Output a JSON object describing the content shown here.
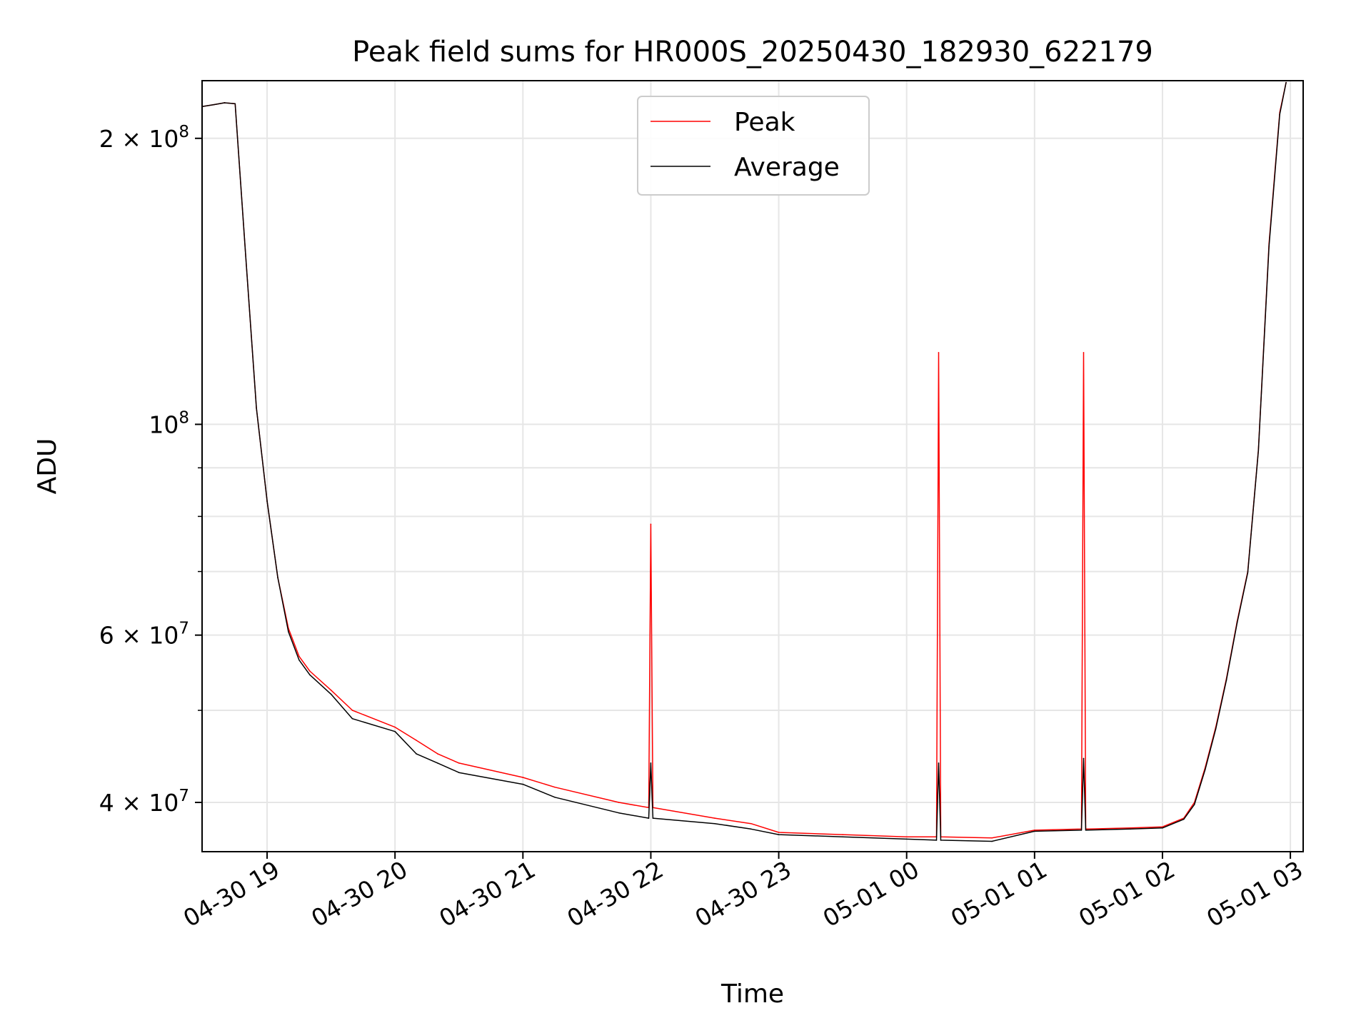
{
  "chart_data": {
    "type": "line",
    "title": "Peak field sums for HR000S_20250430_182930_622179",
    "xlabel": "Time",
    "ylabel": "ADU",
    "y_scale": "log",
    "grid": true,
    "legend_placement": "upper center",
    "xlim": [
      "2025-04-30 18:29:30",
      "2025-05-01 03:06:00"
    ],
    "ylim": [
      35500000,
      230000000
    ],
    "x_ticks": [
      {
        "value": "2025-04-30 19:00",
        "label": "04-30 19"
      },
      {
        "value": "2025-04-30 20:00",
        "label": "04-30 20"
      },
      {
        "value": "2025-04-30 21:00",
        "label": "04-30 21"
      },
      {
        "value": "2025-04-30 22:00",
        "label": "04-30 22"
      },
      {
        "value": "2025-04-30 23:00",
        "label": "04-30 23"
      },
      {
        "value": "2025-05-01 00:00",
        "label": "05-01 00"
      },
      {
        "value": "2025-05-01 01:00",
        "label": "05-01 01"
      },
      {
        "value": "2025-05-01 02:00",
        "label": "05-01 02"
      },
      {
        "value": "2025-05-01 03:00",
        "label": "05-01 03"
      }
    ],
    "y_ticks_major": [
      {
        "value": 40000000,
        "base": "4 × 10",
        "exp": "7"
      },
      {
        "value": 60000000,
        "base": "6 × 10",
        "exp": "7"
      },
      {
        "value": 100000000,
        "base": "10",
        "exp": "8"
      },
      {
        "value": 200000000,
        "base": "2 × 10",
        "exp": "8"
      }
    ],
    "y_ticks_minor": [
      50000000,
      70000000,
      80000000,
      90000000
    ],
    "series": [
      {
        "name": "Peak",
        "color": "#ff0000",
        "x": [
          "2025-04-30 18:29:30",
          "2025-04-30 18:35",
          "2025-04-30 18:40",
          "2025-04-30 18:45",
          "2025-04-30 18:50",
          "2025-04-30 18:55",
          "2025-04-30 19:00",
          "2025-04-30 19:05",
          "2025-04-30 19:10",
          "2025-04-30 19:15",
          "2025-04-30 19:20",
          "2025-04-30 19:30",
          "2025-04-30 19:40",
          "2025-04-30 20:00",
          "2025-04-30 20:10",
          "2025-04-30 20:20",
          "2025-04-30 20:30",
          "2025-04-30 21:00",
          "2025-04-30 21:15",
          "2025-04-30 21:45",
          "2025-04-30 21:59",
          "2025-04-30 22:00",
          "2025-04-30 22:01",
          "2025-04-30 22:30",
          "2025-04-30 22:47",
          "2025-04-30 23:00",
          "2025-04-30 23:30",
          "2025-05-01 00:00",
          "2025-05-01 00:14",
          "2025-05-01 00:15",
          "2025-05-01 00:16",
          "2025-05-01 00:40",
          "2025-05-01 01:00",
          "2025-05-01 01:22",
          "2025-05-01 01:23",
          "2025-05-01 01:24",
          "2025-05-01 01:45",
          "2025-05-01 02:00",
          "2025-05-01 02:10",
          "2025-05-01 02:15",
          "2025-05-01 02:20",
          "2025-05-01 02:25",
          "2025-05-01 02:30",
          "2025-05-01 02:35",
          "2025-05-01 02:40",
          "2025-05-01 02:45",
          "2025-05-01 02:50",
          "2025-05-01 02:55",
          "2025-05-01 02:58"
        ],
        "y": [
          216000000,
          217000000,
          218000000,
          217500000,
          150000000,
          104000000,
          83000000,
          69000000,
          61000000,
          57000000,
          55000000,
          52500000,
          50000000,
          48000000,
          46500000,
          45000000,
          44000000,
          42500000,
          41500000,
          40000000,
          39500000,
          78500000,
          39500000,
          38500000,
          38000000,
          37200000,
          37000000,
          36800000,
          36800000,
          119000000,
          36800000,
          36700000,
          37400000,
          37500000,
          119000000,
          37500000,
          37600000,
          37700000,
          38500000,
          40000000,
          43500000,
          48000000,
          54000000,
          62000000,
          70000000,
          94000000,
          155000000,
          213000000,
          229000000
        ]
      },
      {
        "name": "Average",
        "color": "#000000",
        "x": [
          "2025-04-30 18:29:30",
          "2025-04-30 18:35",
          "2025-04-30 18:40",
          "2025-04-30 18:45",
          "2025-04-30 18:50",
          "2025-04-30 18:55",
          "2025-04-30 19:00",
          "2025-04-30 19:05",
          "2025-04-30 19:10",
          "2025-04-30 19:15",
          "2025-04-30 19:20",
          "2025-04-30 19:30",
          "2025-04-30 19:40",
          "2025-04-30 20:00",
          "2025-04-30 20:10",
          "2025-04-30 20:20",
          "2025-04-30 20:30",
          "2025-04-30 21:00",
          "2025-04-30 21:15",
          "2025-04-30 21:45",
          "2025-04-30 21:59",
          "2025-04-30 22:00",
          "2025-04-30 22:01",
          "2025-04-30 22:30",
          "2025-04-30 22:47",
          "2025-04-30 23:00",
          "2025-04-30 23:30",
          "2025-05-01 00:00",
          "2025-05-01 00:14",
          "2025-05-01 00:15",
          "2025-05-01 00:16",
          "2025-05-01 00:40",
          "2025-05-01 01:00",
          "2025-05-01 01:22",
          "2025-05-01 01:23",
          "2025-05-01 01:24",
          "2025-05-01 01:45",
          "2025-05-01 02:00",
          "2025-05-01 02:10",
          "2025-05-01 02:15",
          "2025-05-01 02:20",
          "2025-05-01 02:25",
          "2025-05-01 02:30",
          "2025-05-01 02:35",
          "2025-05-01 02:40",
          "2025-05-01 02:45",
          "2025-05-01 02:50",
          "2025-05-01 02:55",
          "2025-05-01 02:58"
        ],
        "y": [
          216000000,
          217000000,
          218000000,
          217500000,
          150000000,
          104000000,
          83000000,
          69000000,
          60500000,
          56500000,
          54500000,
          52000000,
          49000000,
          47500000,
          45000000,
          44000000,
          43000000,
          41800000,
          40500000,
          39000000,
          38500000,
          44000000,
          38500000,
          38000000,
          37500000,
          37000000,
          36800000,
          36600000,
          36500000,
          44000000,
          36500000,
          36400000,
          37300000,
          37400000,
          44500000,
          37400000,
          37500000,
          37600000,
          38400000,
          39800000,
          43300000,
          47800000,
          53800000,
          61800000,
          69800000,
          93800000,
          154000000,
          212000000,
          229000000
        ]
      }
    ]
  }
}
